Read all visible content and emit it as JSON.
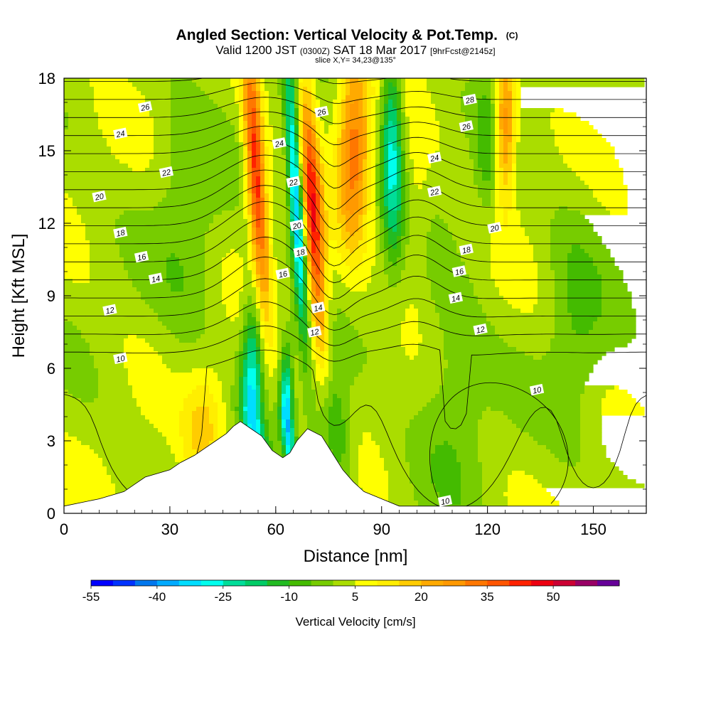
{
  "header": {
    "title_main": "Angled Section: Vertical Velocity & Pot.Temp.",
    "title_mark": "(C)",
    "sub_valid": "Valid 1200 JST",
    "sub_z": "(0300Z)",
    "sub_date": "SAT 18 Mar 2017",
    "sub_fcst": "[9hrFcst@2145z]",
    "slice": "slice X,Y= 34,23@135°"
  },
  "chart_data": {
    "type": "heatmap",
    "xlabel": "Distance [nm]",
    "ylabel": "Height [Kft MSL]",
    "xlim": [
      0,
      165
    ],
    "ylim": [
      0,
      18
    ],
    "x_ticks": [
      0,
      30,
      60,
      90,
      120,
      150
    ],
    "y_ticks": [
      0,
      3,
      6,
      9,
      12,
      15,
      18
    ],
    "colorbar": {
      "label": "Vertical Velocity [cm/s]",
      "levels": [
        -55,
        -50,
        -45,
        -40,
        -35,
        -30,
        -25,
        -20,
        -15,
        -10,
        -5,
        0,
        5,
        10,
        15,
        20,
        25,
        30,
        35,
        40,
        45,
        50,
        55,
        60
      ],
      "tick_labels": [
        "-55",
        "-40",
        "-25",
        "-10",
        "5",
        "20",
        "35",
        "50"
      ],
      "colors": [
        "#0000ff",
        "#0033ff",
        "#0077ee",
        "#00aaff",
        "#00ddff",
        "#00ffee",
        "#00dd99",
        "#00cc66",
        "#22bb22",
        "#44bb00",
        "#77cc00",
        "#aadd00",
        "#ffff00",
        "#ffee00",
        "#ffcc00",
        "#ffaa00",
        "#ff9900",
        "#ff7700",
        "#ff5500",
        "#ff2200",
        "#ee0011",
        "#cc0033",
        "#990066",
        "#660099"
      ]
    },
    "terrain_top_kft": [
      [
        0,
        0.3
      ],
      [
        10,
        0.6
      ],
      [
        17,
        0.9
      ],
      [
        20,
        1.2
      ],
      [
        23,
        1.5
      ],
      [
        30,
        1.8
      ],
      [
        33,
        2.1
      ],
      [
        37,
        2.4
      ],
      [
        40,
        2.7
      ],
      [
        43,
        3.0
      ],
      [
        46,
        3.3
      ],
      [
        48,
        3.6
      ],
      [
        50,
        3.8
      ],
      [
        53,
        3.5
      ],
      [
        56,
        3.2
      ],
      [
        59,
        2.6
      ],
      [
        62,
        2.3
      ],
      [
        64,
        2.5
      ],
      [
        66,
        3.0
      ],
      [
        69,
        3.5
      ],
      [
        73,
        3.2
      ],
      [
        76,
        2.5
      ],
      [
        79,
        1.8
      ],
      [
        82,
        1.3
      ],
      [
        85,
        0.9
      ],
      [
        90,
        0.6
      ],
      [
        95,
        0.3
      ],
      [
        165,
        0.3
      ]
    ],
    "features": [
      {
        "name": "updraft",
        "x": [
          50,
          55
        ],
        "y": [
          0,
          18
        ],
        "peak": 40
      },
      {
        "name": "downdraft",
        "x": [
          50,
          72
        ],
        "y": [
          0,
          18
        ],
        "peak": -45
      },
      {
        "name": "updraft",
        "x": [
          72,
          85
        ],
        "y": [
          4,
          18
        ],
        "peak": 35
      },
      {
        "name": "downdraft",
        "x": [
          85,
          95
        ],
        "y": [
          5,
          18
        ],
        "peak": -25
      },
      {
        "name": "updraft",
        "x": [
          120,
          125
        ],
        "y": [
          10,
          18
        ],
        "peak": 30
      }
    ],
    "isentropes": {
      "unit": "C",
      "levels": [
        10,
        12,
        14,
        16,
        18,
        20,
        22,
        24,
        26,
        28
      ],
      "labels": [
        {
          "text": "26",
          "x": 23,
          "y": 16.8
        },
        {
          "text": "24",
          "x": 16,
          "y": 15.7
        },
        {
          "text": "22",
          "x": 29,
          "y": 14.1
        },
        {
          "text": "20",
          "x": 10,
          "y": 13.1
        },
        {
          "text": "18",
          "x": 16,
          "y": 11.6
        },
        {
          "text": "16",
          "x": 22,
          "y": 10.6
        },
        {
          "text": "14",
          "x": 26,
          "y": 9.7
        },
        {
          "text": "12",
          "x": 13,
          "y": 8.4
        },
        {
          "text": "10",
          "x": 16,
          "y": 6.4
        },
        {
          "text": "24",
          "x": 61,
          "y": 15.3
        },
        {
          "text": "26",
          "x": 73,
          "y": 16.6
        },
        {
          "text": "22",
          "x": 65,
          "y": 13.7
        },
        {
          "text": "20",
          "x": 66,
          "y": 11.9
        },
        {
          "text": "18",
          "x": 67,
          "y": 10.8
        },
        {
          "text": "16",
          "x": 62,
          "y": 9.9
        },
        {
          "text": "14",
          "x": 72,
          "y": 8.5
        },
        {
          "text": "12",
          "x": 71,
          "y": 7.5
        },
        {
          "text": "28",
          "x": 115,
          "y": 17.1
        },
        {
          "text": "26",
          "x": 114,
          "y": 16.0
        },
        {
          "text": "24",
          "x": 105,
          "y": 14.7
        },
        {
          "text": "22",
          "x": 105,
          "y": 13.3
        },
        {
          "text": "20",
          "x": 122,
          "y": 11.8
        },
        {
          "text": "18",
          "x": 114,
          "y": 10.9
        },
        {
          "text": "16",
          "x": 112,
          "y": 10.0
        },
        {
          "text": "14",
          "x": 111,
          "y": 8.9
        },
        {
          "text": "12",
          "x": 118,
          "y": 7.6
        },
        {
          "text": "10",
          "x": 134,
          "y": 5.1
        },
        {
          "text": "10",
          "x": 108,
          "y": 0.5
        }
      ]
    }
  }
}
